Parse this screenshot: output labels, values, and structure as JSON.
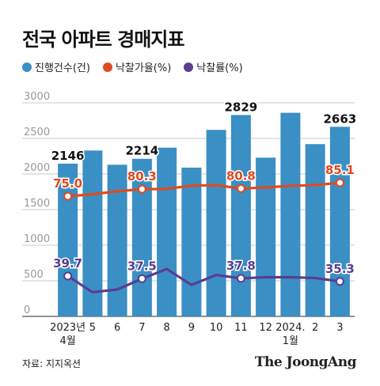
{
  "title": "전국 아파트 경매지표",
  "legend": [
    {
      "label": "진행건수(건)",
      "color": "#3a8fc4"
    },
    {
      "label": "낙찰가율(%)",
      "color": "#e04a1f"
    },
    {
      "label": "낙찰률(%)",
      "color": "#5a3d8f"
    }
  ],
  "source": "자료: 지지옥션",
  "brand": "The JoongAng",
  "chart_data": {
    "type": "bar",
    "categories": [
      [
        "2023년",
        "4월"
      ],
      [
        "5"
      ],
      [
        "6"
      ],
      [
        "7"
      ],
      [
        "8"
      ],
      [
        "9"
      ],
      [
        "10"
      ],
      [
        "11"
      ],
      [
        "12"
      ],
      [
        "2024.",
        "1월"
      ],
      [
        "2"
      ],
      [
        "3"
      ]
    ],
    "ylim": [
      0,
      3000
    ],
    "yticks": [
      0,
      500,
      1000,
      1500,
      2000,
      2500,
      3000
    ],
    "grid": true,
    "series": [
      {
        "name": "진행건수(건)",
        "type": "bar",
        "color": "#3a8fc4",
        "values": [
          2146,
          2330,
          2130,
          2214,
          2370,
          2090,
          2620,
          2829,
          2230,
          2860,
          2420,
          2663
        ],
        "labels": [
          "2146",
          "",
          "",
          "2214",
          "",
          "",
          "",
          "2829",
          "",
          "",
          "",
          "2663"
        ]
      },
      {
        "name": "낙찰가율(%)",
        "type": "line",
        "color": "#e04a1f",
        "values": [
          75.0,
          76.5,
          78.7,
          80.3,
          80.5,
          83.0,
          83.3,
          80.8,
          81.6,
          82.8,
          83.4,
          85.1
        ],
        "labels": [
          "75.0",
          "",
          "",
          "80.3",
          "",
          "",
          "",
          "80.8",
          "",
          "",
          "",
          "85.1"
        ]
      },
      {
        "name": "낙찰률(%)",
        "type": "line",
        "color": "#5a3d8f",
        "values": [
          39.7,
          26.6,
          28.8,
          37.5,
          45.4,
          32.5,
          40.6,
          37.8,
          38.7,
          38.7,
          38.1,
          35.3
        ],
        "labels": [
          "39.7",
          "",
          "",
          "37.5",
          "",
          "",
          "",
          "37.8",
          "",
          "",
          "",
          "35.3"
        ]
      }
    ]
  }
}
